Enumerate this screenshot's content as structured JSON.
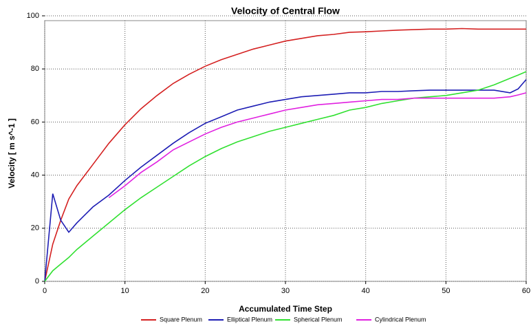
{
  "chart_data": {
    "type": "line",
    "title": "Velocity of Central Flow",
    "x_label": "Accumulated Time Step",
    "y_label": "Velocity [ m s^-1 ]",
    "x": [
      0,
      1,
      2,
      3,
      4,
      6,
      8,
      10,
      12,
      14,
      16,
      18,
      20,
      22,
      24,
      26,
      28,
      30,
      32,
      34,
      36,
      38,
      40,
      42,
      44,
      46,
      48,
      50,
      52,
      54,
      56,
      58,
      59,
      60
    ],
    "series": [
      {
        "name": "Square Plenum",
        "color": "#d42020",
        "values": [
          0,
          14,
          23,
          31,
          36,
          44,
          52,
          59,
          65,
          70,
          74.5,
          78,
          81,
          83.5,
          85.5,
          87.5,
          89,
          90.5,
          91.5,
          92.5,
          93,
          93.8,
          94,
          94.3,
          94.6,
          94.8,
          95,
          95,
          95.2,
          95,
          95,
          95,
          95,
          95
        ]
      },
      {
        "name": "Elliptical Plenum",
        "color": "#1c1cb4",
        "values": [
          0,
          33,
          23,
          18.5,
          22,
          28,
          32.5,
          38,
          43,
          47.5,
          52,
          56,
          59.5,
          62,
          64.5,
          66,
          67.5,
          68.5,
          69.5,
          70,
          70.5,
          71,
          71,
          71.5,
          71.5,
          71.8,
          72,
          72,
          72,
          72,
          72,
          71,
          72.5,
          76
        ]
      },
      {
        "name": "Spherical Plenum",
        "color": "#30e030",
        "values": [
          0,
          4,
          6.5,
          9,
          12,
          17,
          22,
          27,
          31.5,
          35.5,
          39.5,
          43.5,
          47,
          50,
          52.5,
          54.5,
          56.5,
          58,
          59.5,
          61,
          62.5,
          64.5,
          65.5,
          67,
          68,
          69,
          69.5,
          70,
          71,
          72,
          74,
          76.5,
          77.7,
          79
        ]
      },
      {
        "name": "Cylindrical Plenum",
        "color": "#e020e0",
        "values": [
          null,
          null,
          null,
          null,
          null,
          null,
          31.5,
          36,
          41,
          45,
          49.5,
          52.5,
          55.5,
          58,
          60,
          61.5,
          63,
          64.5,
          65.5,
          66.5,
          67,
          67.5,
          68,
          68.5,
          68.5,
          69,
          69,
          69,
          69,
          69,
          69,
          69.5,
          70.2,
          71
        ]
      }
    ],
    "xlim": [
      0,
      60
    ],
    "ylim": [
      0,
      100
    ],
    "xticks": [
      0,
      10,
      20,
      30,
      40,
      50,
      60
    ],
    "yticks": [
      0,
      20,
      40,
      60,
      80,
      100
    ],
    "grid": true,
    "legend": "bottom"
  }
}
